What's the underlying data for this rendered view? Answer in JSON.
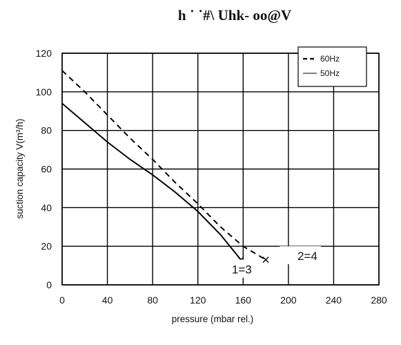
{
  "chart_data": {
    "type": "line",
    "title": "h          ˙ ˙#\\ Uhk- oo@V",
    "xlabel": "pressure (mbar rel.)",
    "ylabel": "suction capacity V(m³/h)",
    "xlim": [
      0,
      280
    ],
    "ylim": [
      0,
      120
    ],
    "x_ticks": [
      "0",
      "40",
      "80",
      "120",
      "160",
      "200",
      "240",
      "280"
    ],
    "y_ticks": [
      "0",
      "20",
      "40",
      "60",
      "80",
      "100",
      "120"
    ],
    "grid": true,
    "legend_position": "top-right",
    "series": [
      {
        "name": "60Hz",
        "style": "dashed",
        "x": [
          0,
          20,
          40,
          60,
          80,
          100,
          120,
          140,
          160,
          180
        ],
        "y": [
          111,
          100,
          88,
          76,
          65,
          53,
          42,
          30,
          20,
          13
        ]
      },
      {
        "name": "50Hz",
        "style": "solid",
        "x": [
          0,
          20,
          40,
          60,
          80,
          100,
          120,
          140,
          158
        ],
        "y": [
          94,
          84,
          74,
          65,
          57,
          48,
          38,
          26,
          13
        ]
      }
    ],
    "annotations": [
      {
        "text": "1=3",
        "x": 150,
        "y": 8
      },
      {
        "text": "2=4",
        "x": 208,
        "y": 15
      }
    ]
  }
}
